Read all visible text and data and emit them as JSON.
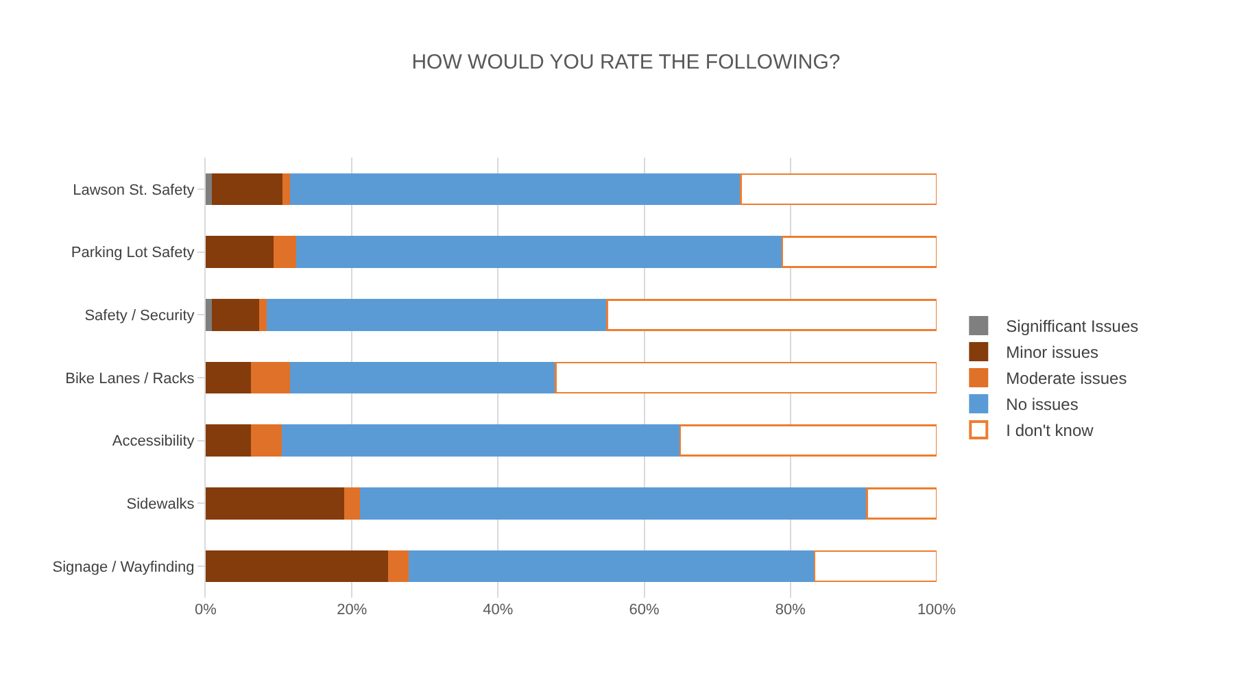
{
  "chart_data": {
    "type": "bar",
    "title": "HOW WOULD YOU RATE THE FOLLOWING?",
    "orientation": "horizontal",
    "stacked": true,
    "categories": [
      "Lawson St. Safety",
      "Parking Lot Safety",
      "Safety / Security",
      "Bike Lanes / Racks",
      "Accessibility",
      "Sidewalks",
      "Signage / Wayfinding"
    ],
    "series": [
      {
        "name": "Signifficant Issues",
        "color": "#7f7f7f",
        "values": [
          1.0,
          0,
          1.0,
          0,
          0,
          0,
          0
        ]
      },
      {
        "name": "Minor issues",
        "color": "#843c0c",
        "values": [
          9.6,
          9.4,
          6.4,
          6.3,
          6.3,
          19.1,
          25.1
        ]
      },
      {
        "name": "Moderate issues",
        "color": "#e07128",
        "values": [
          1.1,
          3.1,
          1.1,
          5.4,
          4.2,
          2.1,
          2.8
        ]
      },
      {
        "name": "No issues",
        "color": "#5b9bd5",
        "values": [
          61.5,
          66.4,
          46.4,
          36.2,
          54.4,
          69.3,
          55.4
        ]
      },
      {
        "name": "I don't know",
        "color": "#ffffff",
        "values": [
          26.8,
          21.1,
          45.1,
          52.1,
          35.1,
          9.5,
          16.7
        ]
      }
    ],
    "xlim": [
      0,
      100
    ],
    "xticks": [
      {
        "value": 0,
        "label": "0%"
      },
      {
        "value": 20,
        "label": "20%"
      },
      {
        "value": 40,
        "label": "40%"
      },
      {
        "value": 60,
        "label": "60%"
      },
      {
        "value": 80,
        "label": "80%"
      },
      {
        "value": 100,
        "label": "100%"
      }
    ],
    "grid": "x",
    "legend": "right"
  }
}
